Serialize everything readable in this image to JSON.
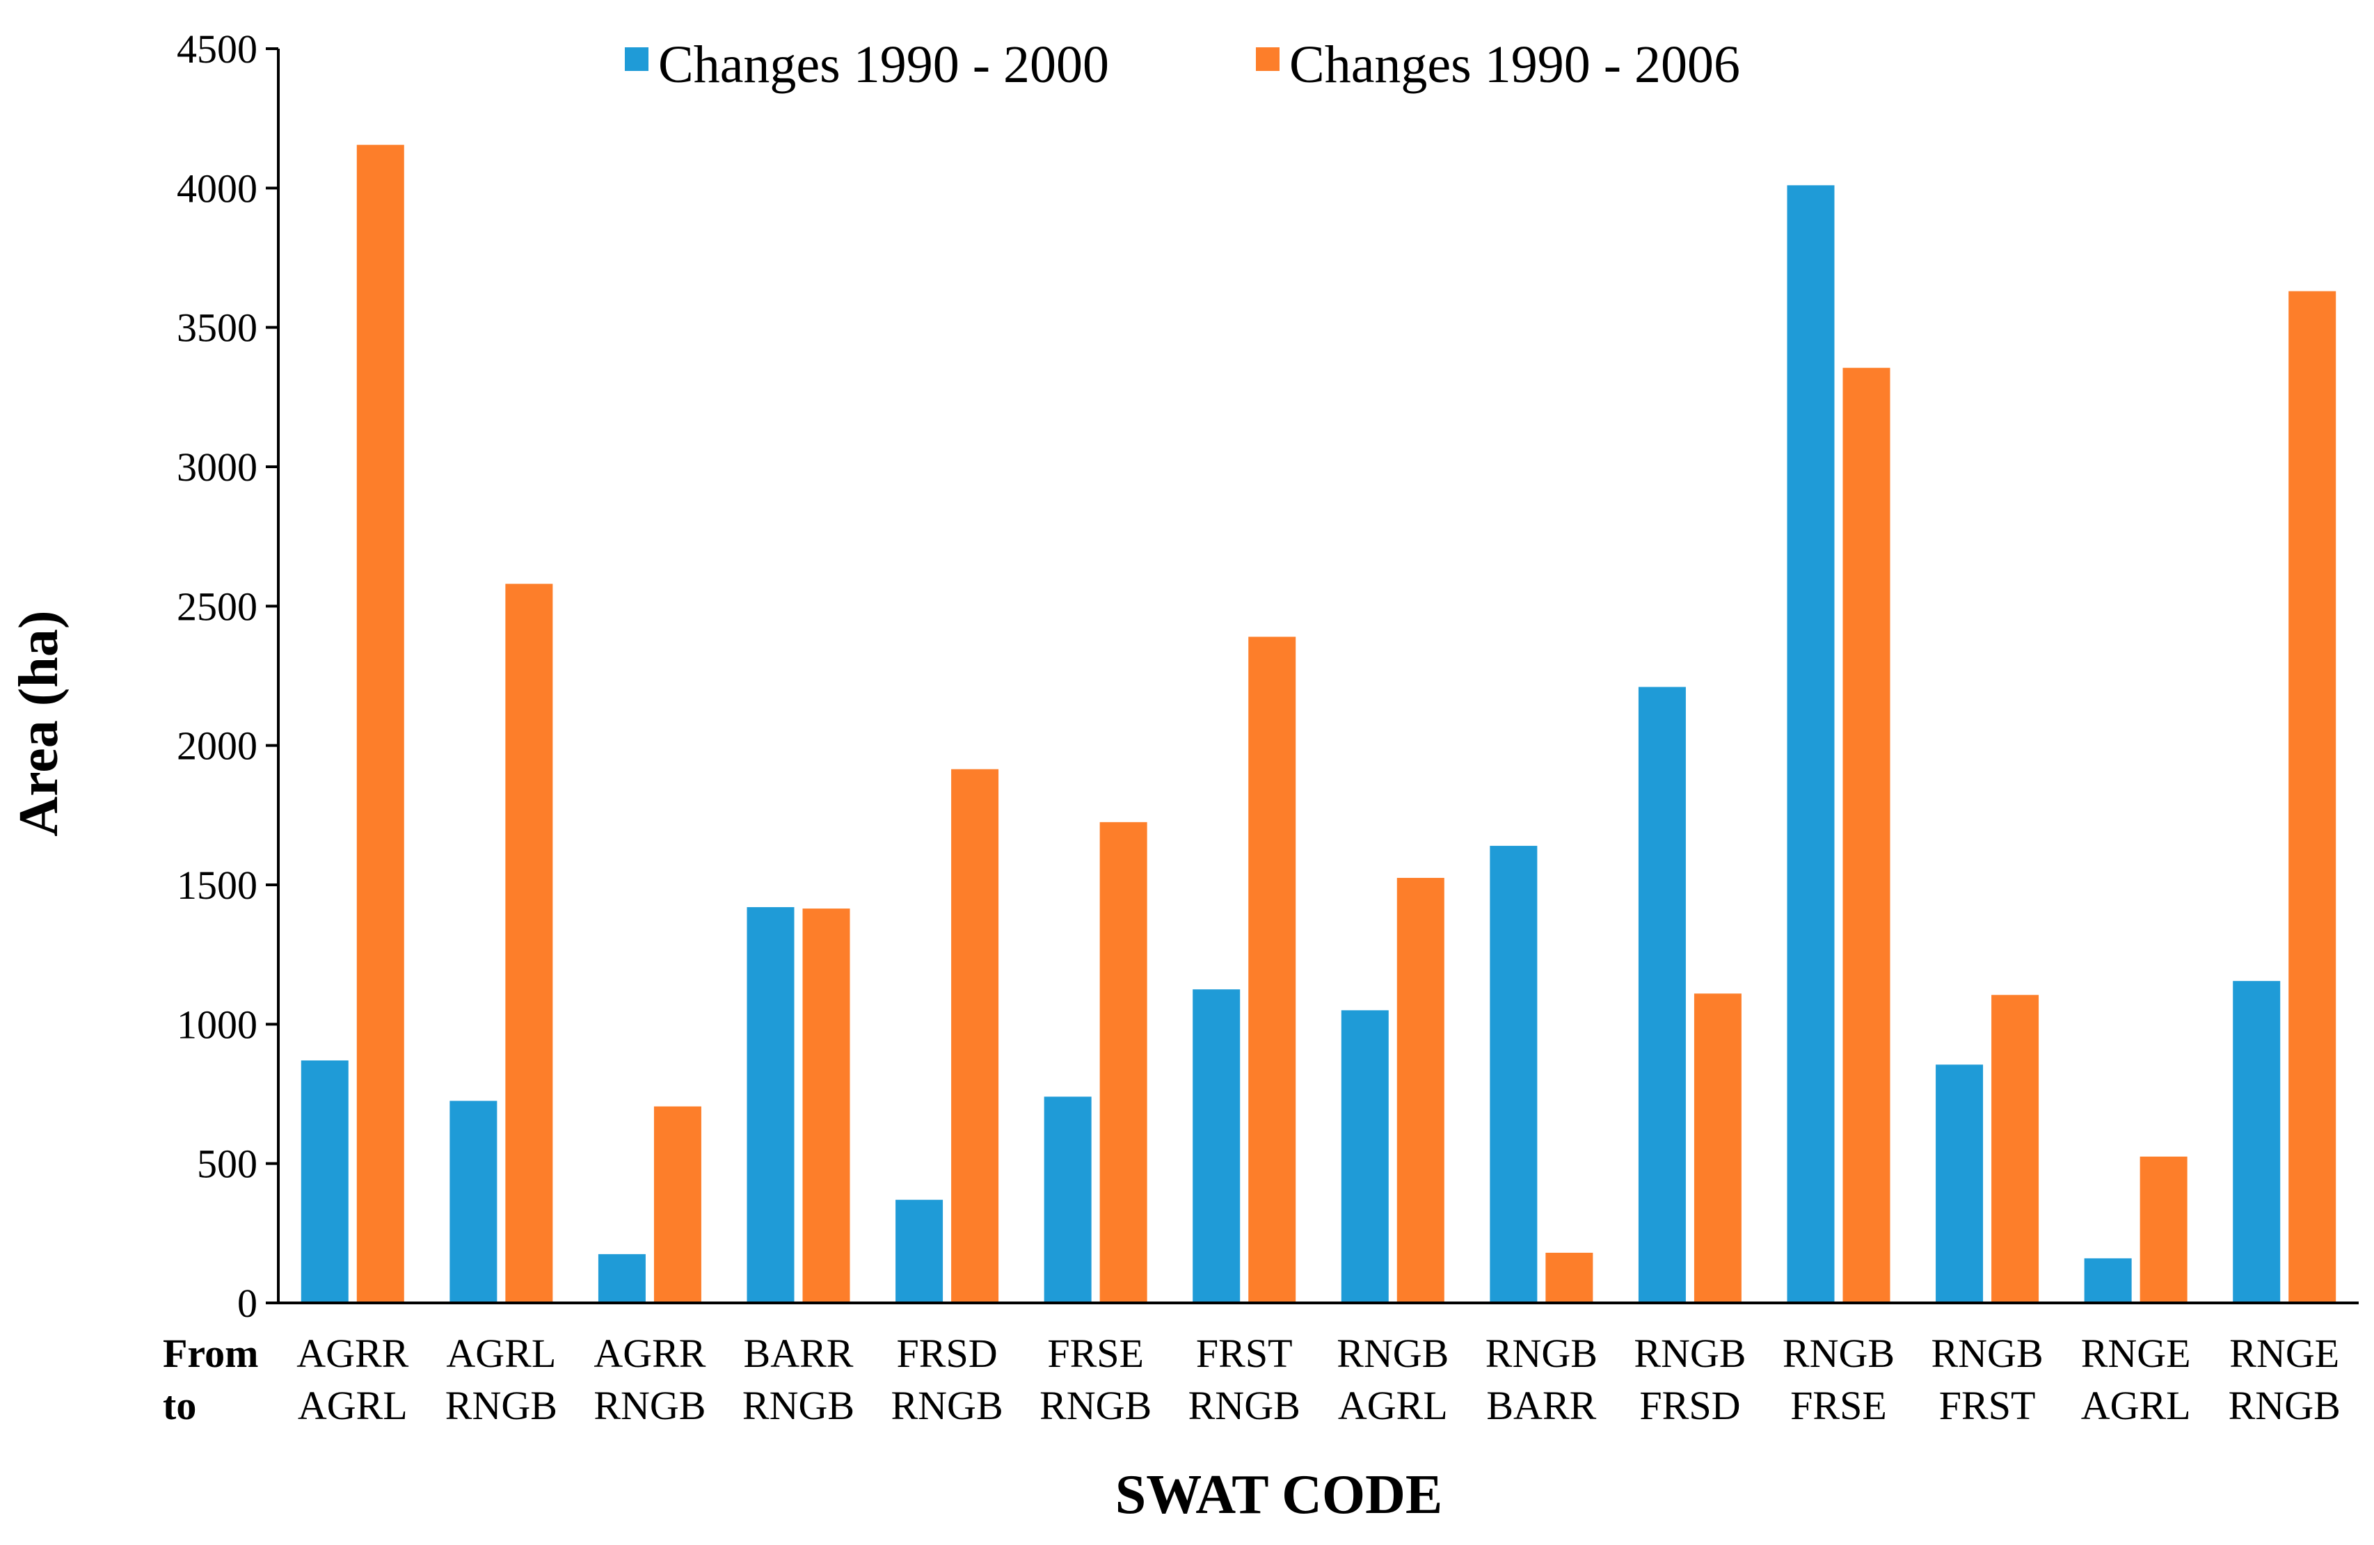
{
  "chart_data": {
    "type": "bar",
    "title": "",
    "xlabel": "SWAT CODE",
    "ylabel": "Area (ha)",
    "ylim": [
      0,
      4500
    ],
    "yticks": [
      0,
      500,
      1000,
      1500,
      2000,
      2500,
      3000,
      3500,
      4000,
      4500
    ],
    "grid": false,
    "legend_position": "top",
    "row_labels": {
      "from": "From",
      "to": "to"
    },
    "categories": [
      {
        "from": "AGRR",
        "to": "AGRL"
      },
      {
        "from": "AGRL",
        "to": "RNGB"
      },
      {
        "from": "AGRR",
        "to": "RNGB"
      },
      {
        "from": "BARR",
        "to": "RNGB"
      },
      {
        "from": "FRSD",
        "to": "RNGB"
      },
      {
        "from": "FRSE",
        "to": "RNGB"
      },
      {
        "from": "FRST",
        "to": "RNGB"
      },
      {
        "from": "RNGB",
        "to": "AGRL"
      },
      {
        "from": "RNGB",
        "to": "BARR"
      },
      {
        "from": "RNGB",
        "to": "FRSD"
      },
      {
        "from": "RNGB",
        "to": "FRSE"
      },
      {
        "from": "RNGB",
        "to": "FRST"
      },
      {
        "from": "RNGE",
        "to": "AGRL"
      },
      {
        "from": "RNGE",
        "to": "RNGB"
      }
    ],
    "series": [
      {
        "name": "Changes 1990 - 2000",
        "color": "#1f9bd7",
        "values": [
          870,
          725,
          175,
          1420,
          370,
          740,
          1125,
          1050,
          1640,
          2210,
          4010,
          855,
          160,
          1155
        ]
      },
      {
        "name": "Changes 1990 - 2006",
        "color": "#fd7e2a",
        "values": [
          4155,
          2580,
          705,
          1415,
          1915,
          1725,
          2390,
          1525,
          180,
          1110,
          3355,
          1105,
          525,
          3630
        ]
      }
    ]
  }
}
